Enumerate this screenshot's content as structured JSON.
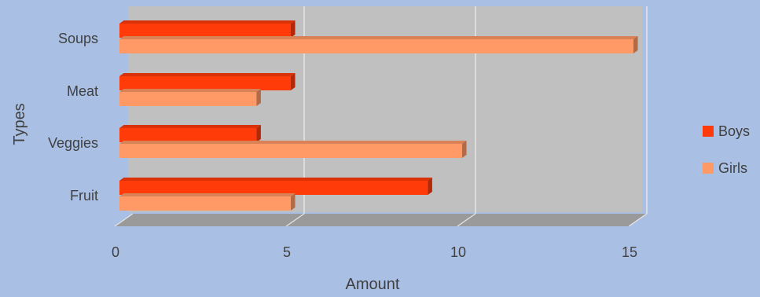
{
  "chart_data": {
    "type": "bar",
    "orientation": "horizontal",
    "style": "3d-clustered",
    "categories": [
      "Fruit",
      "Veggies",
      "Meat",
      "Soups"
    ],
    "series": [
      {
        "name": "Boys",
        "values": [
          9,
          4,
          5,
          5
        ],
        "color": "#ff3b0a"
      },
      {
        "name": "Girls",
        "values": [
          5,
          10,
          4,
          15
        ],
        "color": "#ff9966"
      }
    ],
    "xlabel": "Amount",
    "ylabel": "Types",
    "xlim": [
      0,
      15
    ],
    "xticks": [
      "0",
      "5",
      "10",
      "15"
    ],
    "grid": true,
    "legend_position": "right",
    "colors": {
      "background": "#a9bfe3",
      "plot_wall": "#c0c0c0",
      "floor": "#9a9a9a",
      "gridline": "#e6e6e6"
    }
  }
}
